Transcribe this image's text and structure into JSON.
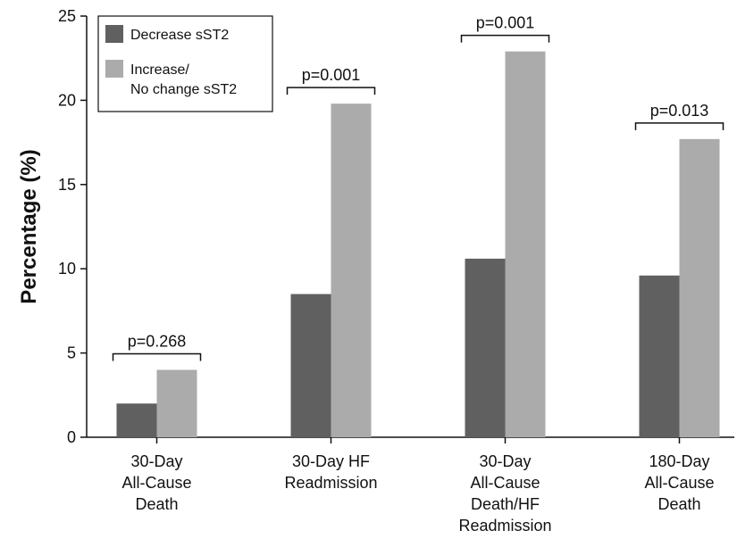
{
  "chart_data": {
    "type": "bar",
    "y_label": "Percentage (%)",
    "categories": [
      "30-Day\nAll-Cause\nDeath",
      "30-Day HF\nReadmission",
      "30-Day\nAll-Cause\nDeath/HF\nReadmission",
      "180-Day\nAll-Cause\nDeath"
    ],
    "series": [
      {
        "name": "Decrease sST2",
        "color": "#606060",
        "values": [
          2.0,
          8.5,
          10.6,
          9.6
        ]
      },
      {
        "name": "Increase/\nNo change sST2",
        "color": "#ababab",
        "values": [
          4.0,
          19.8,
          22.9,
          17.7
        ]
      }
    ],
    "annotations": [
      "p=0.268",
      "p=0.001",
      "p=0.001",
      "p=0.013"
    ],
    "ylim": [
      0,
      25
    ],
    "yticks": [
      0,
      5,
      10,
      15,
      20,
      25
    ],
    "grid": false,
    "legend": "top-left"
  }
}
